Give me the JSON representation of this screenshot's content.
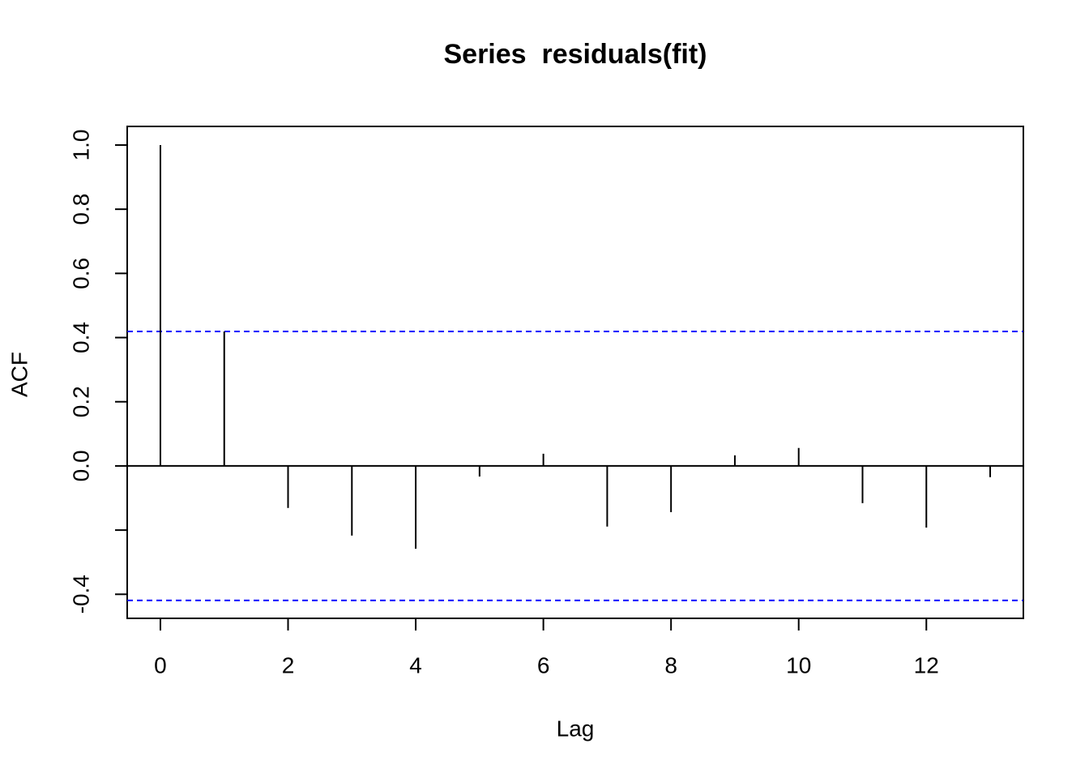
{
  "chart_data": {
    "type": "stem",
    "title": "Series  residuals(fit)",
    "x_label": "Lag",
    "y_label": "ACF",
    "x": [
      0,
      1,
      2,
      3,
      4,
      5,
      6,
      7,
      8,
      9,
      10,
      11,
      12,
      13
    ],
    "values": [
      1.0,
      0.419,
      -0.131,
      -0.217,
      -0.258,
      -0.033,
      0.038,
      -0.189,
      -0.144,
      0.033,
      0.056,
      -0.116,
      -0.192,
      -0.035
    ],
    "color": "#000000",
    "confidence_bounds": [
      0.419,
      -0.419
    ],
    "confidence_color": "#0000ff",
    "xlim": [
      -0.52,
      13.52
    ],
    "ylim": [
      -0.475,
      1.058
    ],
    "xticks": [
      0,
      2,
      4,
      6,
      8,
      10,
      12
    ],
    "yticks": [
      {
        "value": -0.4,
        "label": "-0.4"
      },
      {
        "value": -0.2,
        "label": null
      },
      {
        "value": 0,
        "label": "0.0"
      },
      {
        "value": 0.2,
        "label": "0.2"
      },
      {
        "value": 0.4,
        "label": "0.4"
      },
      {
        "value": 0.6,
        "label": "0.6"
      },
      {
        "value": 0.8,
        "label": "0.8"
      },
      {
        "value": 1,
        "label": "1.0"
      }
    ]
  }
}
